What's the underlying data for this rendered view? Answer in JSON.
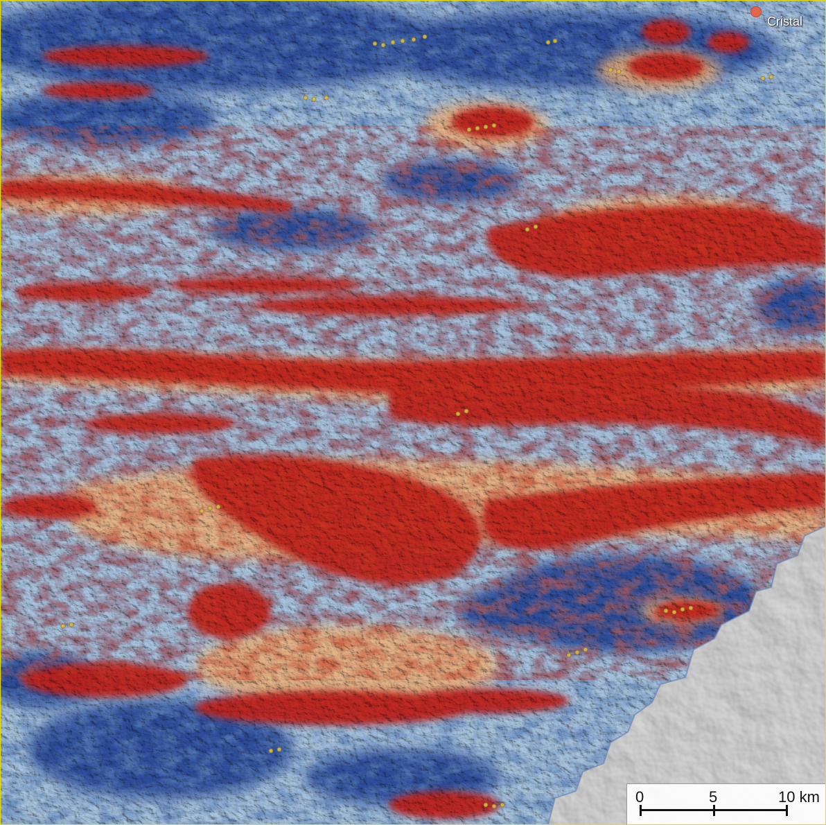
{
  "map": {
    "place_label": "Cristal",
    "scale": {
      "ticks": [
        "0",
        "5",
        "10 km"
      ]
    },
    "colors": {
      "frame": "#e8e000",
      "high": "#b81d12",
      "mid_high": "#e05a2e",
      "mid": "#f3c18e",
      "mid_low": "#a9c4df",
      "low": "#3a5fa8",
      "very_low": "#213f8c",
      "hillshade": "#d7d7d7",
      "marker": "#e2664a",
      "points": "#d8b94a"
    }
  }
}
